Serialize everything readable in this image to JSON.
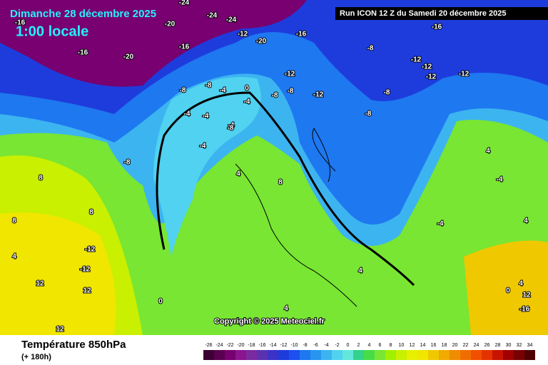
{
  "header": {
    "date": "Dimanche 28 décembre 2025",
    "time": "1:00 locale",
    "run": "Run ICON 12 Z du Samedi 20 décembre 2025"
  },
  "footer": {
    "title": "Température 850hPa",
    "lead": "(+ 180h)",
    "copyright": "Copyright © 2025 Meteociel.fr"
  },
  "legend": {
    "levels": [
      -26,
      -24,
      -22,
      -20,
      -18,
      -16,
      -14,
      -12,
      -10,
      -8,
      -6,
      -4,
      -2,
      0,
      2,
      4,
      6,
      8,
      10,
      12,
      14,
      16,
      18,
      20,
      22,
      24,
      26,
      28,
      30,
      32,
      34
    ],
    "colors": [
      "#3c0032",
      "#5a0050",
      "#780070",
      "#8c1490",
      "#7a2aa0",
      "#5a32b0",
      "#3c32c8",
      "#1e3cdc",
      "#1e50f0",
      "#1e78f0",
      "#2896f0",
      "#3cb4f0",
      "#50d2f0",
      "#64e6dc",
      "#32d28c",
      "#46dc46",
      "#78e632",
      "#a0f000",
      "#c8f000",
      "#e6f000",
      "#f0e600",
      "#f0c800",
      "#f0aa00",
      "#f08c00",
      "#f06e00",
      "#f05000",
      "#e63200",
      "#c81400",
      "#a00000",
      "#780000",
      "#500000"
    ]
  },
  "contour_labels": [
    "-24",
    "-24",
    "-24",
    "-20",
    "-20",
    "-16",
    "-16",
    "-20",
    "-16",
    "-12",
    "-16",
    "-12",
    "-8",
    "-8",
    "-4",
    "-4",
    "-8",
    "-8",
    "-12",
    "-12",
    "-8",
    "-12",
    "-12",
    "-12",
    "-8",
    "-8",
    "-16",
    "-4",
    "-4",
    "-4",
    "0",
    "-8",
    "-4",
    "-8",
    "8",
    "4",
    "8",
    "8",
    "8",
    "-12",
    "-12",
    "12",
    "12",
    "4",
    "4",
    "0",
    "0",
    "4",
    "-4",
    "4",
    "4",
    "-4",
    "4",
    "12",
    "-16",
    "12"
  ]
}
